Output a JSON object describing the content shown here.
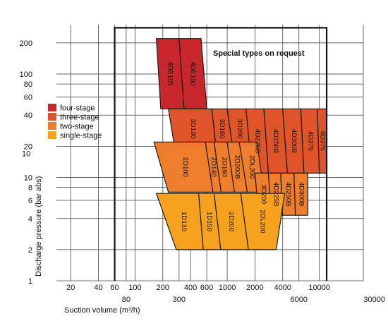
{
  "chart_data": {
    "type": "area",
    "title": "",
    "xlabel": "Suction volume (m³/h)",
    "ylabel": "Discharge pressure (bar abs)",
    "x_scale": "log",
    "y_scale": "log",
    "xlim": [
      14,
      30000
    ],
    "ylim": [
      1,
      300
    ],
    "grid": true,
    "x_ticks_main": [
      {
        "value": 20,
        "label": "20"
      },
      {
        "value": 40,
        "label": "40"
      },
      {
        "value": 60,
        "label": "60"
      },
      {
        "value": 100,
        "label": "100"
      },
      {
        "value": 200,
        "label": "200"
      },
      {
        "value": 400,
        "label": "400"
      },
      {
        "value": 600,
        "label": "600"
      },
      {
        "value": 1000,
        "label": "1000"
      },
      {
        "value": 2000,
        "label": "2000"
      },
      {
        "value": 4000,
        "label": "4000"
      },
      {
        "value": 10000,
        "label": "10000"
      }
    ],
    "x_ticks_lower": [
      {
        "value": 80,
        "label": "80"
      },
      {
        "value": 300,
        "label": "300"
      },
      {
        "value": 6000,
        "label": "6000"
      },
      {
        "value": 30000,
        "label": "30000"
      }
    ],
    "y_ticks": [
      {
        "value": 1,
        "label": "1"
      },
      {
        "value": 2,
        "label": "2"
      },
      {
        "value": 4,
        "label": "4"
      },
      {
        "value": 6,
        "label": "6"
      },
      {
        "value": 8,
        "label": "8"
      },
      {
        "value": 10,
        "label": "10"
      },
      {
        "value": 20,
        "label": "20"
      },
      {
        "value": 40,
        "label": "40"
      },
      {
        "value": 60,
        "label": "60"
      },
      {
        "value": 80,
        "label": "80"
      },
      {
        "value": 100,
        "label": "100"
      },
      {
        "value": 200,
        "label": "200"
      }
    ],
    "y_extra_label": {
      "value": 17,
      "label": "10"
    },
    "legend": {
      "position": "left",
      "entries": [
        {
          "name": "four-stage",
          "color": "#c8282c"
        },
        {
          "name": "three-stage",
          "color": "#e0542a"
        },
        {
          "name": "two-stage",
          "color": "#ee7d2c"
        },
        {
          "name": "single-stage",
          "color": "#f7a21e"
        }
      ]
    },
    "annotations": [
      {
        "text": "Special types on request",
        "x": 2200,
        "y": 160
      }
    ],
    "special_frame": {
      "x_min": 60,
      "x_max": 12000,
      "y_min": 1,
      "y_max": 280
    },
    "series": [
      {
        "name": "four-stage",
        "color": "#c8282c",
        "regions": [
          {
            "label": "4DE105",
            "polygon": [
              [
                170,
                220
              ],
              [
                300,
                220
              ],
              [
                340,
                46
              ],
              [
                190,
                46
              ]
            ]
          },
          {
            "label": "4DE150",
            "polygon": [
              [
                300,
                220
              ],
              [
                520,
                220
              ],
              [
                600,
                46
              ],
              [
                340,
                46
              ]
            ]
          }
        ]
      },
      {
        "name": "three-stage",
        "color": "#e0542a",
        "regions": [
          {
            "label": "3D130",
            "polygon": [
              [
                230,
                46
              ],
              [
                680,
                46
              ],
              [
                760,
                19
              ],
              [
                270,
                19
              ]
            ]
          },
          {
            "label": "3D160",
            "polygon": [
              [
                680,
                46
              ],
              [
                1000,
                46
              ],
              [
                1150,
                19
              ],
              [
                760,
                19
              ]
            ]
          },
          {
            "label": "3D200",
            "polygon": [
              [
                1000,
                46
              ],
              [
                1600,
                46
              ],
              [
                1850,
                19
              ],
              [
                1150,
                19
              ]
            ]
          },
          {
            "label": "4D225B",
            "polygon": [
              [
                1600,
                46
              ],
              [
                2500,
                46
              ],
              [
                2800,
                11
              ],
              [
                1850,
                11
              ]
            ]
          },
          {
            "label": "4D250B",
            "polygon": [
              [
                2500,
                46
              ],
              [
                4000,
                46
              ],
              [
                4500,
                11
              ],
              [
                2800,
                11
              ]
            ]
          },
          {
            "label": "4D300B",
            "polygon": [
              [
                4000,
                46
              ],
              [
                6300,
                46
              ],
              [
                6800,
                11
              ],
              [
                4500,
                11
              ]
            ]
          },
          {
            "label": "4D375",
            "polygon": [
              [
                6300,
                46
              ],
              [
                9500,
                46
              ],
              [
                10000,
                11
              ],
              [
                6800,
                11
              ]
            ]
          },
          {
            "label": "6D375",
            "polygon": [
              [
                9500,
                46
              ],
              [
                12000,
                46
              ],
              [
                12000,
                11
              ],
              [
                10000,
                11
              ]
            ]
          }
        ]
      },
      {
        "name": "two-stage",
        "color": "#ee7d2c",
        "regions": [
          {
            "label": "2D100",
            "polygon": [
              [
                160,
                22
              ],
              [
                580,
                22
              ],
              [
                700,
                7.2
              ],
              [
                230,
                7.2
              ]
            ]
          },
          {
            "label": "2D140",
            "polygon": [
              [
                580,
                22
              ],
              [
                720,
                22
              ],
              [
                860,
                7.2
              ],
              [
                700,
                7.2
              ]
            ]
          },
          {
            "label": "2D160",
            "polygon": [
              [
                720,
                22
              ],
              [
                1000,
                22
              ],
              [
                1200,
                7.2
              ],
              [
                860,
                7.2
              ]
            ]
          },
          {
            "label": "2D200B",
            "polygon": [
              [
                1000,
                22
              ],
              [
                1350,
                22
              ],
              [
                1650,
                7.2
              ],
              [
                1200,
                7.2
              ]
            ]
          },
          {
            "label": "2DL200",
            "polygon": [
              [
                1350,
                22
              ],
              [
                2100,
                22
              ],
              [
                2500,
                7.2
              ],
              [
                1650,
                7.2
              ]
            ]
          },
          {
            "label": "3D200",
            "polygon": [
              [
                2000,
                11
              ],
              [
                2800,
                11
              ],
              [
                3000,
                4.3
              ],
              [
                2200,
                4.3
              ]
            ]
          },
          {
            "label": "4D225B",
            "polygon": [
              [
                2800,
                11
              ],
              [
                3800,
                11
              ],
              [
                4000,
                4.3
              ],
              [
                3000,
                4.3
              ]
            ]
          },
          {
            "label": "4D250B",
            "polygon": [
              [
                3800,
                11
              ],
              [
                5300,
                11
              ],
              [
                5500,
                4.3
              ],
              [
                4000,
                4.3
              ]
            ]
          },
          {
            "label": "4D300B",
            "polygon": [
              [
                5300,
                11
              ],
              [
                7500,
                11
              ],
              [
                7500,
                4.3
              ],
              [
                5500,
                4.3
              ]
            ]
          }
        ]
      },
      {
        "name": "single-stage",
        "color": "#f7a21e",
        "regions": [
          {
            "label": "1D130",
            "polygon": [
              [
                170,
                7
              ],
              [
                490,
                7
              ],
              [
                550,
                2
              ],
              [
                280,
                2
              ]
            ]
          },
          {
            "label": "1D150",
            "polygon": [
              [
                490,
                7
              ],
              [
                720,
                7
              ],
              [
                850,
                2
              ],
              [
                550,
                2
              ]
            ]
          },
          {
            "label": "2D200",
            "polygon": [
              [
                720,
                7
              ],
              [
                1400,
                7
              ],
              [
                1700,
                2
              ],
              [
                850,
                2
              ]
            ]
          },
          {
            "label": "2DL200",
            "polygon": [
              [
                1400,
                7
              ],
              [
                4200,
                7
              ],
              [
                3400,
                2
              ],
              [
                1700,
                2
              ]
            ]
          }
        ]
      }
    ]
  }
}
